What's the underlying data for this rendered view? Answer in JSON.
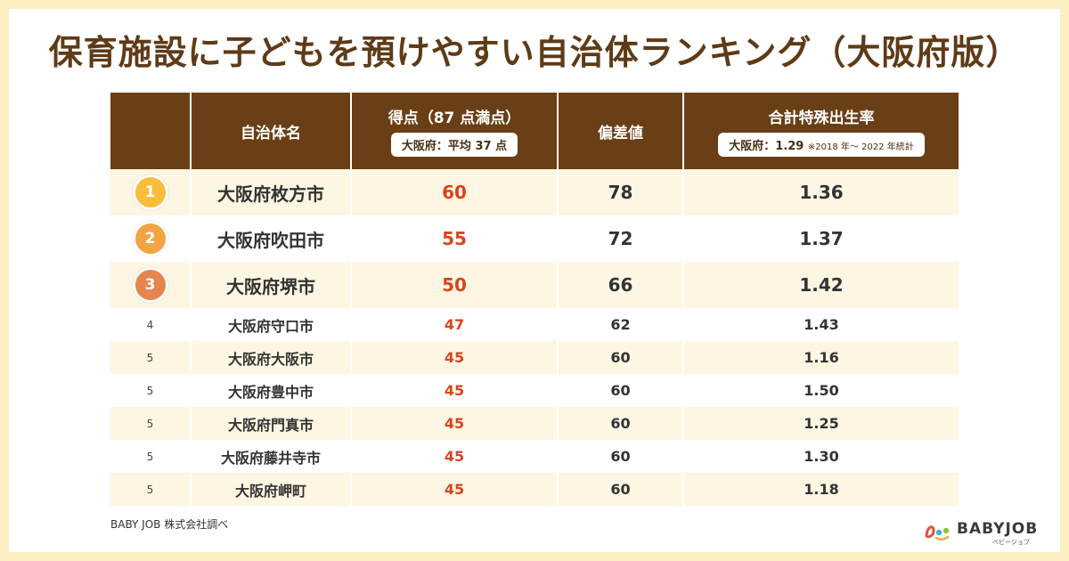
{
  "title": "保育施設に子どもを預けやすい自治体ランキング（大阪府版）",
  "source": "BABY JOB 株式会社調べ",
  "logo": {
    "text": "BABYJOB",
    "sub": "ベビージョブ"
  },
  "colors": {
    "header_bg": "#6a3f16",
    "score": "#d9441c",
    "rank1": "#f9bd3c",
    "rank2": "#f2a445",
    "rank3": "#e3874e",
    "row_alt": "#fdf6e3",
    "page_bg": "#fbeec1"
  },
  "chart_data": {
    "type": "table",
    "headers": {
      "rank": "",
      "name": "自治体名",
      "score": "得点（87 点満点）",
      "score_note": "大阪府：平均 37 点",
      "deviation": "偏差値",
      "tfr": "合計特殊出生率",
      "tfr_note": "大阪府：1.29",
      "tfr_note_small": "※2018 年～ 2022 年統計"
    },
    "rows": [
      {
        "rank": "1",
        "name": "大阪府枚方市",
        "score": "60",
        "deviation": "78",
        "tfr": "1.36"
      },
      {
        "rank": "2",
        "name": "大阪府吹田市",
        "score": "55",
        "deviation": "72",
        "tfr": "1.37"
      },
      {
        "rank": "3",
        "name": "大阪府堺市",
        "score": "50",
        "deviation": "66",
        "tfr": "1.42"
      },
      {
        "rank": "4",
        "name": "大阪府守口市",
        "score": "47",
        "deviation": "62",
        "tfr": "1.43"
      },
      {
        "rank": "5",
        "name": "大阪府大阪市",
        "score": "45",
        "deviation": "60",
        "tfr": "1.16"
      },
      {
        "rank": "5",
        "name": "大阪府豊中市",
        "score": "45",
        "deviation": "60",
        "tfr": "1.50"
      },
      {
        "rank": "5",
        "name": "大阪府門真市",
        "score": "45",
        "deviation": "60",
        "tfr": "1.25"
      },
      {
        "rank": "5",
        "name": "大阪府藤井寺市",
        "score": "45",
        "deviation": "60",
        "tfr": "1.30"
      },
      {
        "rank": "5",
        "name": "大阪府岬町",
        "score": "45",
        "deviation": "60",
        "tfr": "1.18"
      }
    ]
  }
}
